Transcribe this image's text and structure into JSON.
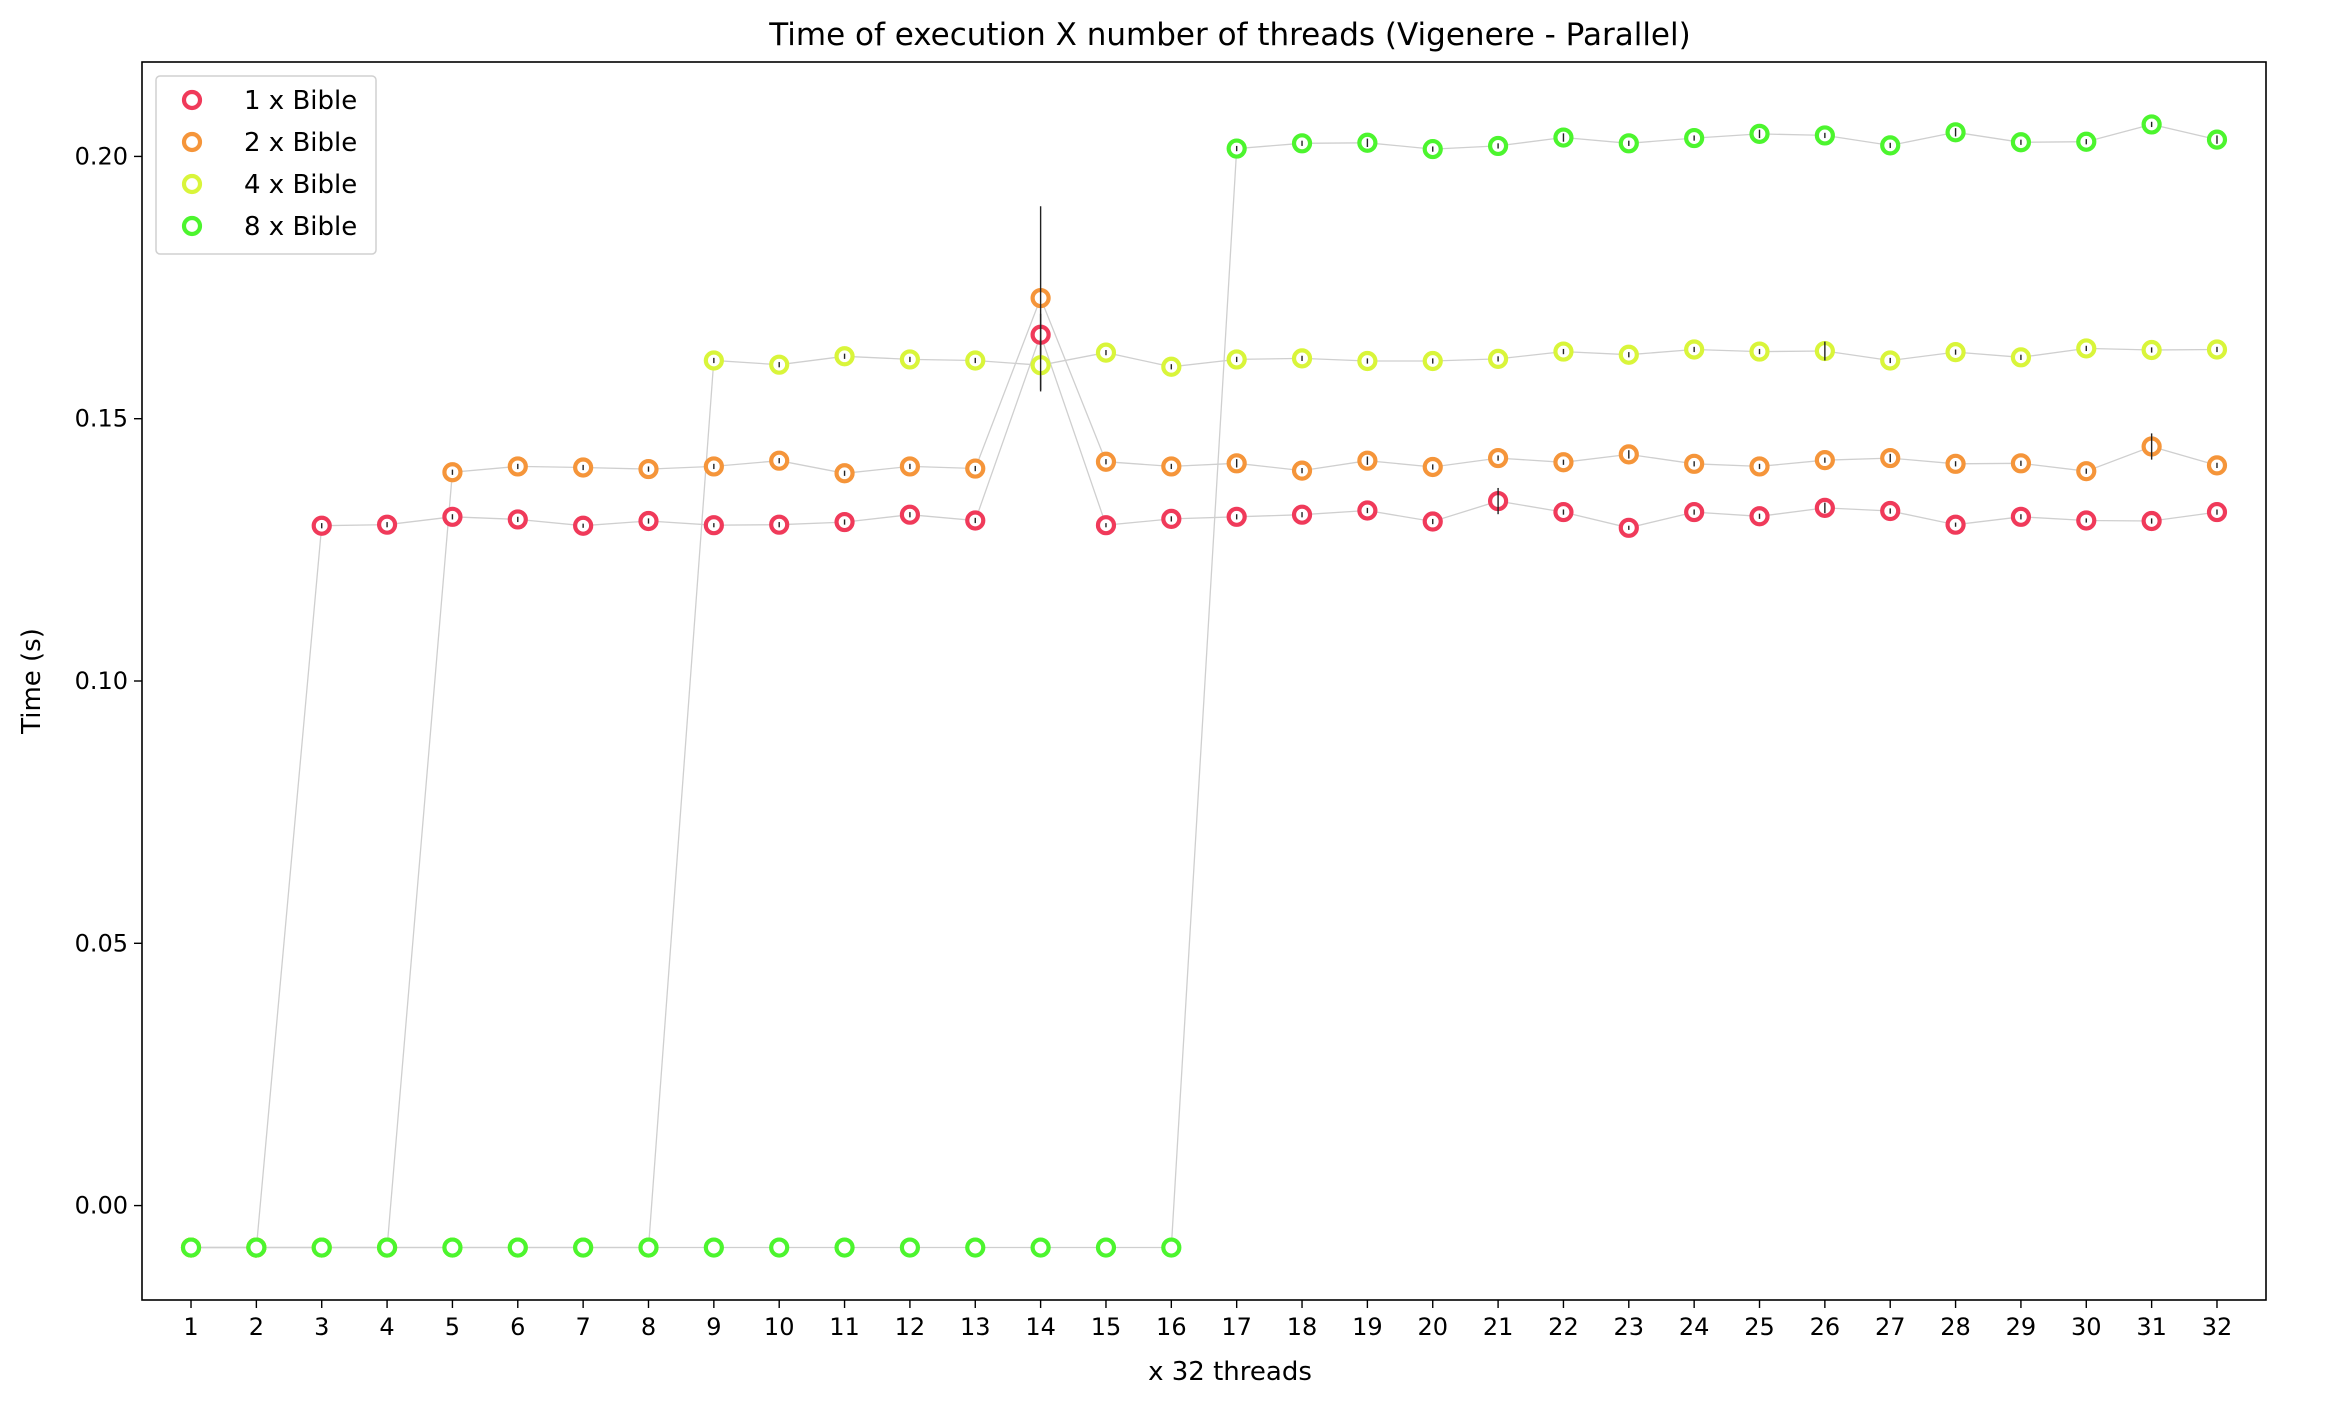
{
  "chart_data": {
    "type": "scatter",
    "title": "Time of execution X number of threads (Vigenere - Parallel)",
    "xlabel": "x 32 threads",
    "ylabel": "Time (s)",
    "x": [
      1,
      2,
      3,
      4,
      5,
      6,
      7,
      8,
      9,
      10,
      11,
      12,
      13,
      14,
      15,
      16,
      17,
      18,
      19,
      20,
      21,
      22,
      23,
      24,
      25,
      26,
      27,
      28,
      29,
      30,
      31,
      32
    ],
    "xlim": [
      0.25,
      32.75
    ],
    "ylim": [
      -0.018,
      0.218
    ],
    "yticks": [
      0.0,
      0.05,
      0.1,
      0.15,
      0.2
    ],
    "ytick_labels": [
      "0.00",
      "0.05",
      "0.10",
      "0.15",
      "0.20"
    ],
    "legend_position": "top-left",
    "grid": false,
    "series": [
      {
        "name": "1 x Bible",
        "color": "#f03a5a",
        "values": [
          -0.008,
          -0.008,
          0.1296,
          0.1298,
          0.1313,
          0.1308,
          0.1296,
          0.1305,
          0.1297,
          0.1298,
          0.1303,
          0.1317,
          0.1306,
          0.166,
          0.1297,
          0.1309,
          0.1313,
          0.1317,
          0.1325,
          0.1304,
          0.1343,
          0.1322,
          0.1292,
          0.1322,
          0.1314,
          0.133,
          0.1324,
          0.1298,
          0.1313,
          0.1306,
          0.1305,
          0.1322
        ],
        "errors": [
          0,
          0,
          0.0005,
          0.0005,
          0.0005,
          0.0005,
          0.0004,
          0.0005,
          0.0004,
          0.0005,
          0.0005,
          0.0005,
          0.0005,
          0.004,
          0.0004,
          0.0005,
          0.0005,
          0.0005,
          0.0005,
          0.0005,
          0.0025,
          0.0005,
          0.0004,
          0.0005,
          0.0005,
          0.001,
          0.0005,
          0.0004,
          0.0005,
          0.0004,
          0.0005,
          0.0005
        ]
      },
      {
        "name": "2 x Bible",
        "color": "#f5953a",
        "values": [
          -0.008,
          -0.008,
          -0.008,
          -0.008,
          0.1398,
          0.1409,
          0.1407,
          0.1404,
          0.1409,
          0.142,
          0.1396,
          0.1409,
          0.1405,
          0.173,
          0.1418,
          0.1409,
          0.1415,
          0.1401,
          0.142,
          0.1408,
          0.1425,
          0.1417,
          0.1432,
          0.1414,
          0.1409,
          0.1421,
          0.1425,
          0.1414,
          0.1415,
          0.14,
          0.1447,
          0.1411
        ],
        "errors": [
          0,
          0,
          0,
          0,
          0.0005,
          0.0005,
          0.0005,
          0.0005,
          0.0005,
          0.0005,
          0.0005,
          0.0005,
          0.0005,
          0.0175,
          0.0005,
          0.0005,
          0.0008,
          0.0005,
          0.0008,
          0.0005,
          0.0005,
          0.0005,
          0.0008,
          0.0005,
          0.0005,
          0.0005,
          0.0008,
          0.0005,
          0.0005,
          0.0005,
          0.0025,
          0.0005
        ]
      },
      {
        "name": "4 x Bible",
        "color": "#d9f53a",
        "values": [
          -0.008,
          -0.008,
          -0.008,
          -0.008,
          -0.008,
          -0.008,
          -0.008,
          -0.008,
          0.1611,
          0.1603,
          0.1619,
          0.1613,
          0.1611,
          0.1602,
          0.1626,
          0.1599,
          0.1613,
          0.1615,
          0.161,
          0.161,
          0.1614,
          0.1628,
          0.1622,
          0.1632,
          0.1628,
          0.1629,
          0.1611,
          0.1627,
          0.1617,
          0.1634,
          0.1631,
          0.1632
        ],
        "errors": [
          0,
          0,
          0,
          0,
          0,
          0,
          0,
          0,
          0.0005,
          0.0005,
          0.0005,
          0.0005,
          0.0005,
          0.005,
          0.0005,
          0.0005,
          0.0005,
          0.0005,
          0.0005,
          0.0005,
          0.0005,
          0.0005,
          0.0005,
          0.0005,
          0.0005,
          0.0018,
          0.0005,
          0.0005,
          0.0005,
          0.0005,
          0.0005,
          0.0005
        ]
      },
      {
        "name": "8 x Bible",
        "color": "#4cf52e",
        "values": [
          -0.008,
          -0.008,
          -0.008,
          -0.008,
          -0.008,
          -0.008,
          -0.008,
          -0.008,
          -0.008,
          -0.008,
          -0.008,
          -0.008,
          -0.008,
          -0.008,
          -0.008,
          -0.008,
          0.2015,
          0.2025,
          0.2026,
          0.2014,
          0.202,
          0.2036,
          0.2025,
          0.2035,
          0.2043,
          0.204,
          0.2021,
          0.2046,
          0.2027,
          0.2028,
          0.2061,
          0.2032
        ],
        "errors": [
          0,
          0,
          0,
          0,
          0,
          0,
          0,
          0,
          0,
          0,
          0,
          0,
          0,
          0,
          0,
          0,
          0.0005,
          0.0005,
          0.0008,
          0.0005,
          0.0005,
          0.0008,
          0.0005,
          0.0005,
          0.0008,
          0.0005,
          0.0005,
          0.0008,
          0.0005,
          0.0005,
          0.0005,
          0.0008
        ]
      }
    ]
  }
}
